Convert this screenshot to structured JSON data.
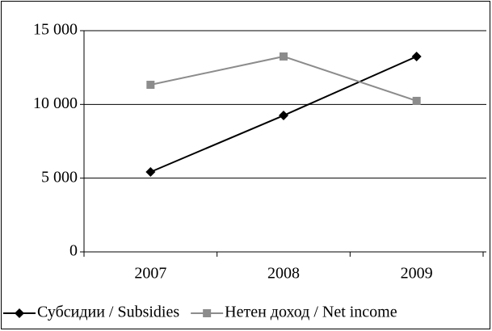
{
  "chart_data": {
    "type": "line",
    "categories": [
      "2007",
      "2008",
      "2009"
    ],
    "series": [
      {
        "name": "Субсидии / Subsidies",
        "color": "#000000",
        "marker": "diamond",
        "values": [
          5420,
          9250,
          13250
        ]
      },
      {
        "name": "Нетен доход / Net income",
        "color": "#8c8c8c",
        "marker": "square",
        "values": [
          11330,
          13250,
          10240
        ]
      }
    ],
    "ylim": [
      0,
      15000
    ],
    "yticks": [
      {
        "value": 0,
        "label": "0"
      },
      {
        "value": 5000,
        "label": "5 000"
      },
      {
        "value": 10000,
        "label": "10 000"
      },
      {
        "value": 15000,
        "label": "15 000"
      }
    ],
    "grid": true,
    "legend": "bottom"
  }
}
